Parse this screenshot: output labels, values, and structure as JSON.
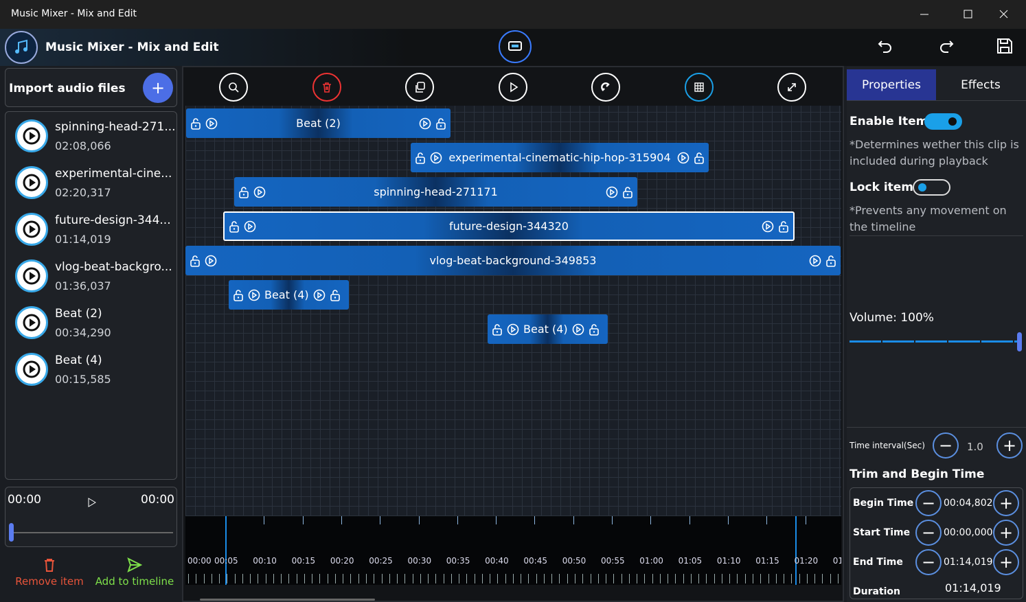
{
  "window": {
    "title": "Music Mixer - Mix and Edit"
  },
  "header": {
    "title": "Music Mixer - Mix and Edit"
  },
  "library": {
    "import_label": "Import audio files",
    "files": [
      {
        "name": "spinning-head-271...",
        "duration": "02:08,066"
      },
      {
        "name": "experimental-cine...",
        "duration": "02:20,317"
      },
      {
        "name": "future-design-344...",
        "duration": "01:14,019"
      },
      {
        "name": "vlog-beat-backgro...",
        "duration": "01:36,037"
      },
      {
        "name": "Beat (2)",
        "duration": "00:34,290"
      },
      {
        "name": "Beat (4)",
        "duration": "00:15,585"
      }
    ]
  },
  "player": {
    "position": "00:00",
    "length": "00:00"
  },
  "actions": {
    "remove": "Remove item",
    "add": "Add to timeline"
  },
  "timeline": {
    "clips": [
      "Beat (2)",
      "experimental-cinematic-hip-hop-315904",
      "spinning-head-271171",
      "future-design-344320",
      "vlog-beat-background-349853",
      "Beat (4)",
      "Beat (4)"
    ],
    "ruler": [
      "00:00",
      "00:05",
      "00:10",
      "00:15",
      "00:20",
      "00:25",
      "00:30",
      "00:35",
      "00:40",
      "00:45",
      "00:50",
      "00:55",
      "01:00",
      "01:05",
      "01:10",
      "01:15",
      "01:20",
      "01"
    ]
  },
  "properties": {
    "tabs": [
      "Properties",
      "Effects"
    ],
    "enable_label": "Enable Item",
    "enable_note": "*Determines wether this clip is included during playback",
    "lock_label": "Lock item",
    "lock_note": "*Prevents any movement on the timeline",
    "volume": "Volume: 100%",
    "interval_label": "Time interval(Sec)",
    "interval_value": "1.0",
    "trim_title": "Trim and Begin Time",
    "trim": [
      {
        "label": "Begin Time",
        "value": "00:04,802"
      },
      {
        "label": "Start Time",
        "value": "00:00,000"
      },
      {
        "label": "End Time",
        "value": "01:14,019"
      },
      {
        "label": "Duration",
        "value": "01:14,019"
      }
    ]
  }
}
